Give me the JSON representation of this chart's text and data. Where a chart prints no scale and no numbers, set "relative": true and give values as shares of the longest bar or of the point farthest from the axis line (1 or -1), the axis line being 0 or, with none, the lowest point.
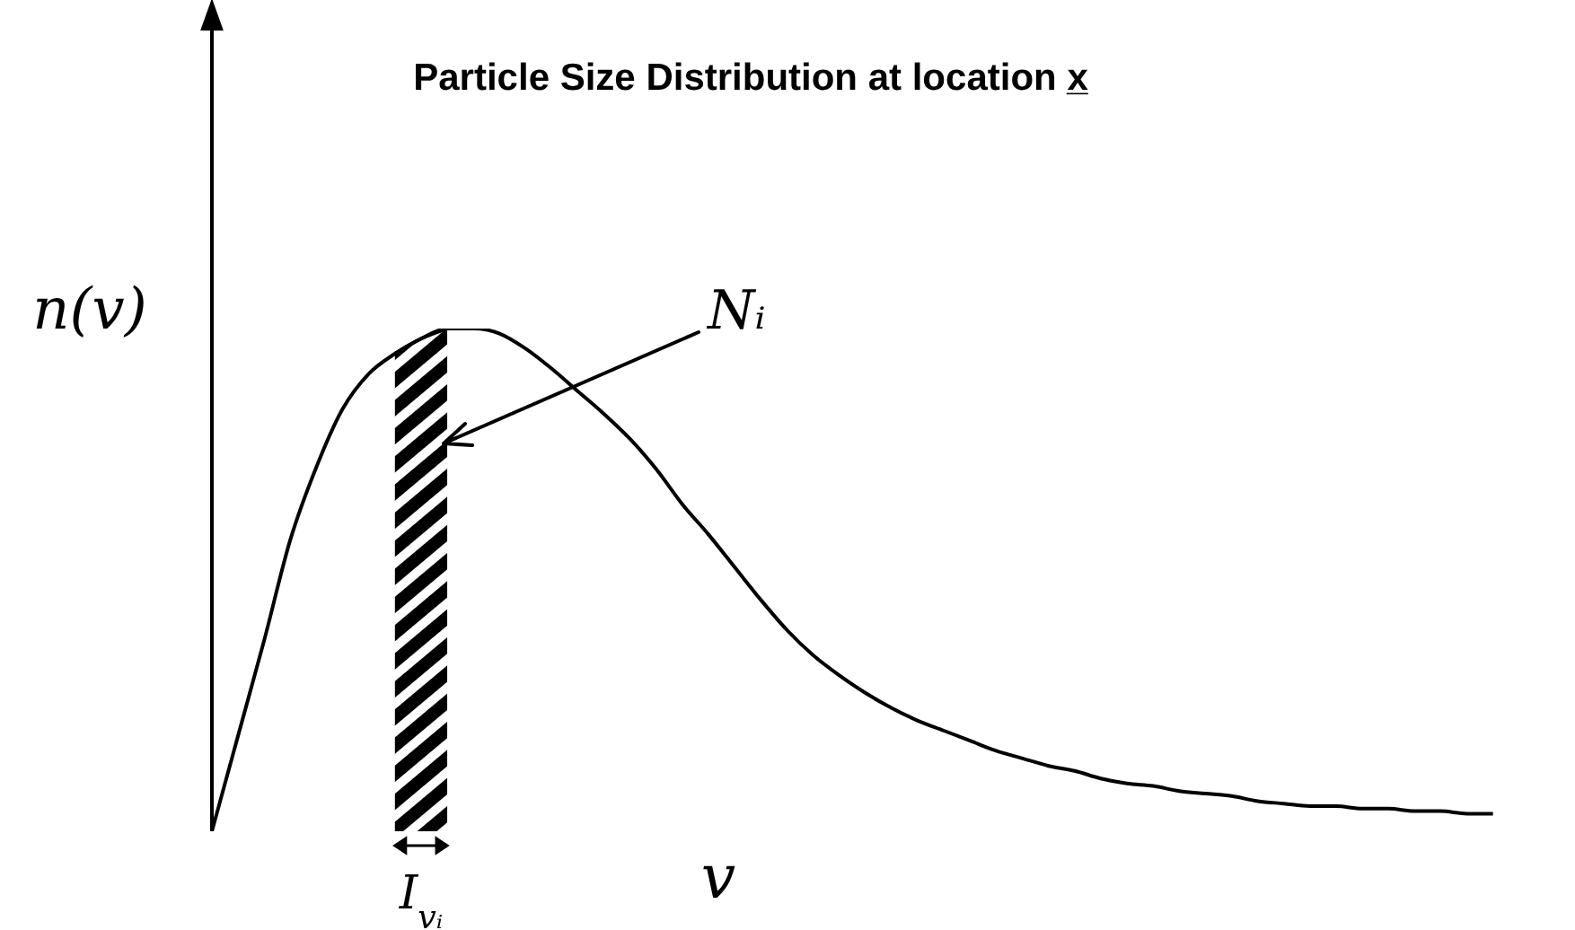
{
  "chart_data": {
    "type": "line",
    "title": "Particle Size Distribution at location x̲",
    "xlabel": "v",
    "ylabel": "n(v)",
    "relative": true,
    "categories": [
      null,
      null,
      null,
      null,
      null,
      null,
      null,
      null,
      null,
      null,
      null,
      null,
      null,
      null,
      null,
      null,
      null,
      null,
      null,
      null,
      null,
      null,
      null,
      null,
      null,
      null,
      null,
      null,
      null,
      null,
      null,
      null,
      null,
      null,
      null,
      null,
      null,
      null,
      null,
      null,
      null,
      null,
      null,
      null,
      null,
      null,
      null,
      null,
      null,
      null,
      null,
      null,
      null
    ],
    "series": [
      {
        "color": "#000000",
        "values": [
          0,
          0.19,
          0.38,
          0.58,
          0.725,
          0.84,
          0.91,
          0.95,
          0.98,
          1.0,
          1.0,
          0.99,
          0.96,
          0.92,
          0.875,
          0.83,
          0.78,
          0.72,
          0.65,
          0.59,
          0.525,
          0.46,
          0.4,
          0.35,
          0.31,
          0.275,
          0.245,
          0.22,
          0.2,
          0.18,
          0.16,
          0.145,
          0.13,
          0.12,
          0.105,
          0.095,
          0.09,
          0.08,
          0.075,
          0.07,
          0.06,
          0.055,
          0.05,
          0.05,
          0.045,
          0.045,
          0.04,
          0.04,
          0.035,
          0.035,
          null,
          null,
          null
        ]
      },
      {
        "type": "area",
        "color": "#000000",
        "values": [
          null,
          null,
          null,
          null,
          null,
          null,
          null,
          0.95,
          0.98,
          1.0,
          null,
          null,
          null,
          null,
          null,
          null,
          null,
          null,
          null,
          null,
          null,
          null,
          null,
          null,
          null,
          null,
          null,
          null,
          null,
          null,
          null,
          null,
          null,
          null,
          null,
          null,
          null,
          null,
          null,
          null,
          null,
          null,
          null,
          null,
          null,
          null,
          null,
          null,
          null,
          null,
          null,
          null,
          null
        ]
      }
    ],
    "annotations": [
      "Nᵢ",
      "I$_{vᵢ}$"
    ]
  }
}
